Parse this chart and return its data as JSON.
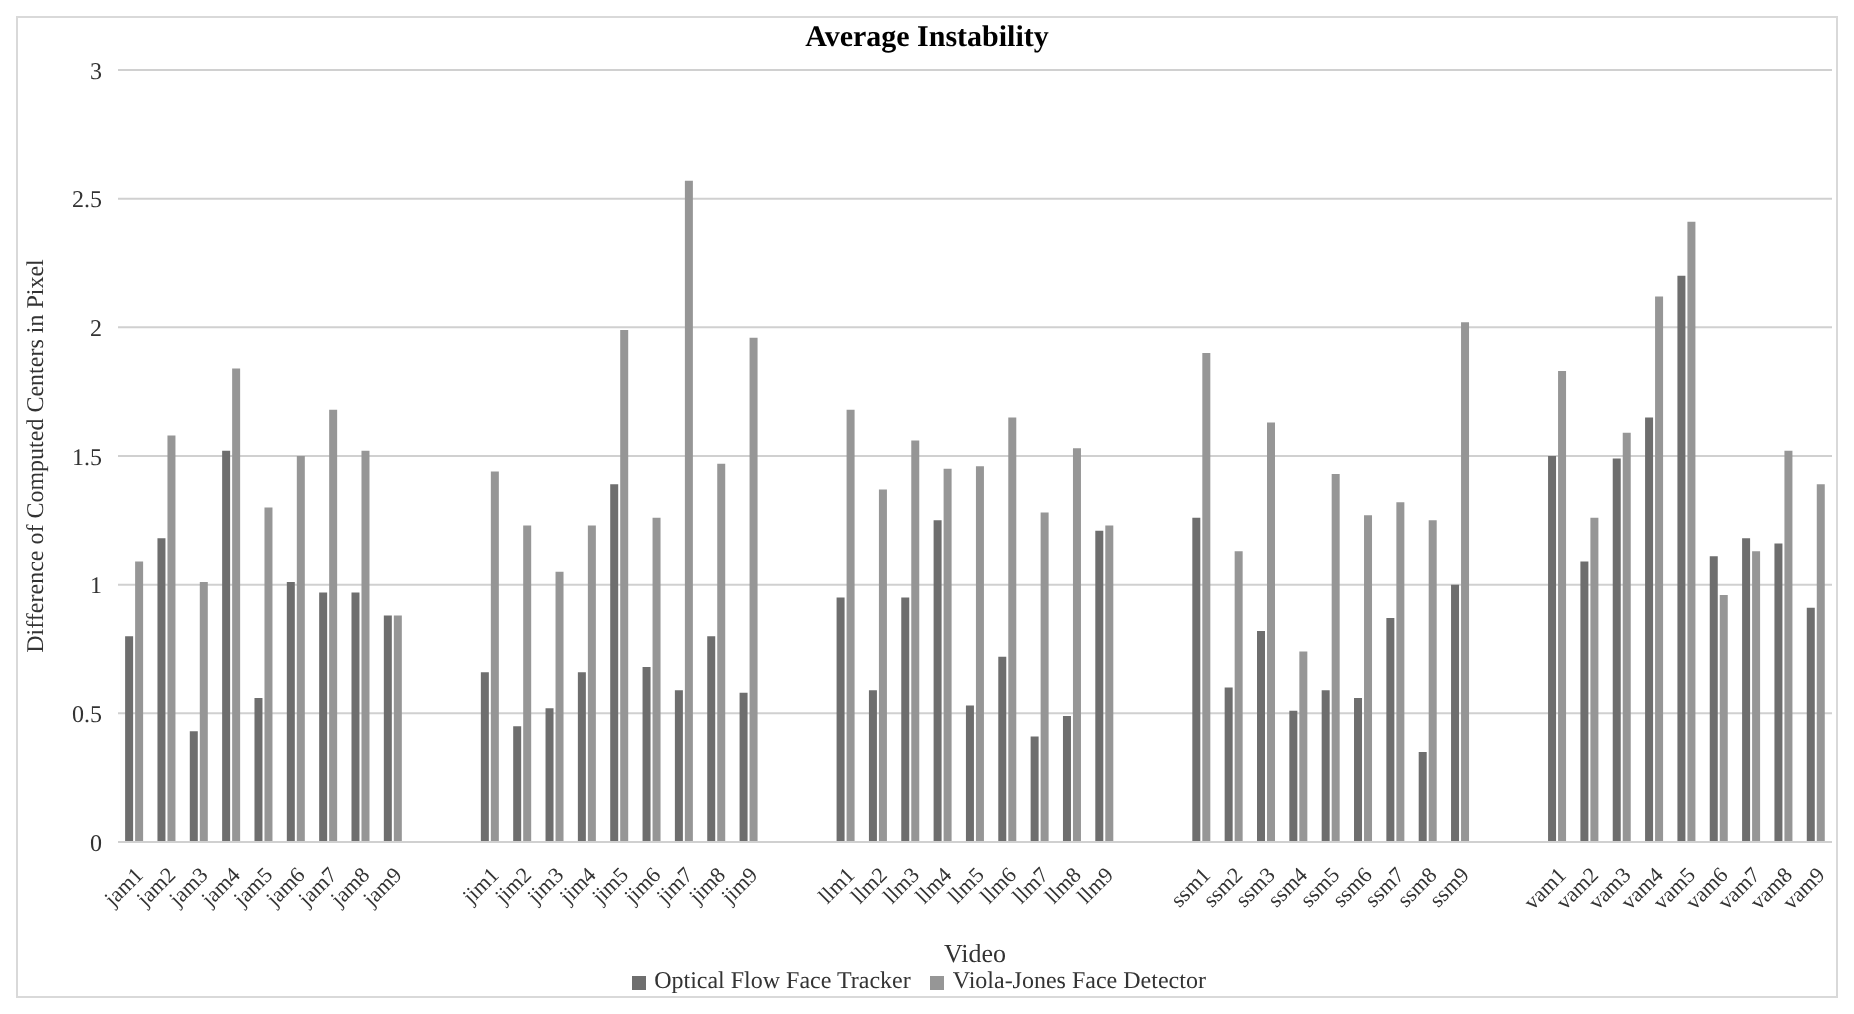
{
  "chart_data": {
    "type": "bar",
    "title": "Average Instability",
    "xlabel": "Video",
    "ylabel": "Difference of Computed Centers in Pixel",
    "categories": [
      "jam1",
      "jam2",
      "jam3",
      "jam4",
      "jam5",
      "jam6",
      "jam7",
      "jam8",
      "jam9",
      null,
      null,
      "jim1",
      "jim2",
      "jim3",
      "jim4",
      "jim5",
      "jim6",
      "jim7",
      "jim8",
      "jim9",
      null,
      null,
      "llm1",
      "llm2",
      "llm3",
      "llm4",
      "llm5",
      "llm6",
      "llm7",
      "llm8",
      "llm9",
      null,
      null,
      "ssm1",
      "ssm2",
      "ssm3",
      "ssm4",
      "ssm5",
      "ssm6",
      "ssm7",
      "ssm8",
      "ssm9",
      null,
      null,
      "vam1",
      "vam2",
      "vam3",
      "vam4",
      "vam5",
      "vam6",
      "vam7",
      "vam8",
      "vam9"
    ],
    "series": [
      {
        "name": "Optical Flow Face Tracker",
        "color": "#6e6e6e",
        "values": [
          0.8,
          1.18,
          0.43,
          1.52,
          0.56,
          1.01,
          0.97,
          0.97,
          0.88,
          null,
          null,
          0.66,
          0.45,
          0.52,
          0.66,
          1.39,
          0.68,
          0.59,
          0.8,
          0.58,
          null,
          null,
          0.95,
          0.59,
          0.95,
          1.25,
          0.53,
          0.72,
          0.41,
          0.49,
          1.21,
          null,
          null,
          1.26,
          0.6,
          0.82,
          0.51,
          0.59,
          0.56,
          0.87,
          0.35,
          1.0,
          null,
          null,
          1.5,
          1.09,
          1.49,
          1.65,
          2.2,
          1.11,
          1.18,
          1.16,
          0.91
        ]
      },
      {
        "name": "Viola-Jones Face Detector",
        "color": "#969696",
        "values": [
          1.09,
          1.58,
          1.01,
          1.84,
          1.3,
          1.5,
          1.68,
          1.52,
          0.88,
          null,
          null,
          1.44,
          1.23,
          1.05,
          1.23,
          1.99,
          1.26,
          2.57,
          1.47,
          1.96,
          null,
          null,
          1.68,
          1.37,
          1.56,
          1.45,
          1.46,
          1.65,
          1.28,
          1.53,
          1.23,
          null,
          null,
          1.9,
          1.13,
          1.63,
          0.74,
          1.43,
          1.27,
          1.32,
          1.25,
          2.02,
          null,
          null,
          1.83,
          1.26,
          1.59,
          2.12,
          2.41,
          0.96,
          1.13,
          1.52,
          1.39
        ]
      }
    ],
    "ylim": [
      0,
      3
    ],
    "yticks": [
      0,
      0.5,
      1,
      1.5,
      2,
      2.5,
      3
    ],
    "grid": "y",
    "legend": "bottom"
  }
}
